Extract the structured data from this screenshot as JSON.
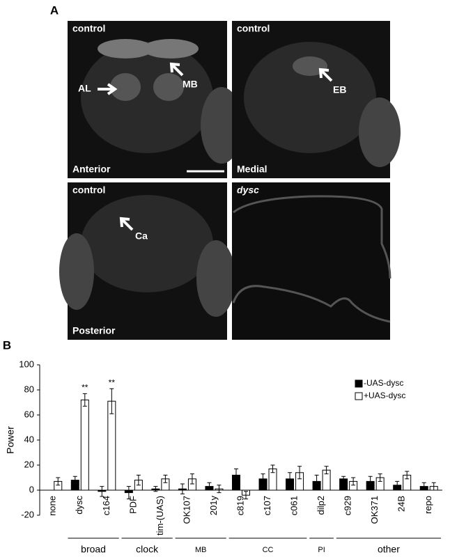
{
  "panel_labels": [
    "A",
    "B"
  ],
  "images": {
    "top_left": {
      "title": "control",
      "region": "Anterior",
      "arrows": [
        "AL",
        "MB"
      ]
    },
    "top_right": {
      "title": "control",
      "region": "Medial",
      "arrows": [
        "EB"
      ]
    },
    "bottom_left": {
      "title": "control",
      "region": "Posterior",
      "arrows": [
        "Ca"
      ]
    },
    "bottom_right": {
      "title": "dysc"
    }
  },
  "chart_data": {
    "type": "bar",
    "y_label": "Power",
    "categories": [
      "none",
      "dysc",
      "c164",
      "PDF",
      "tim-(UAS)",
      "OK107",
      "201y",
      "c819",
      "c107",
      "c061",
      "dilp2",
      "c929",
      "OK371",
      "24B",
      "repo"
    ],
    "series": [
      {
        "name": "-UAS-dysc",
        "color": "#000000",
        "values": [
          null,
          8,
          -1,
          -2,
          1,
          1,
          3,
          12,
          9,
          9,
          7,
          9,
          7,
          4,
          3
        ],
        "errors": [
          null,
          3,
          4,
          5,
          2,
          4,
          3,
          5,
          4,
          5,
          5,
          2,
          4,
          3,
          3
        ]
      },
      {
        "name": "+UAS-dysc",
        "color": "#ffffff",
        "values": [
          7,
          72,
          71,
          8,
          9,
          9,
          1,
          -4,
          17,
          14,
          16,
          7,
          10,
          12,
          3
        ],
        "errors": [
          3,
          5,
          10,
          4,
          3,
          4,
          3,
          3,
          3,
          5,
          3,
          3,
          3,
          3,
          3
        ],
        "markers": [
          null,
          "**",
          "**",
          null,
          null,
          null,
          null,
          null,
          null,
          null,
          null,
          null,
          null,
          null,
          null
        ]
      }
    ],
    "groups": [
      {
        "label": "broad",
        "from": 1,
        "to": 2
      },
      {
        "label": "clock",
        "from": 3,
        "to": 4
      },
      {
        "label": "MB",
        "from": 5,
        "to": 6
      },
      {
        "label": "CC",
        "from": 7,
        "to": 9
      },
      {
        "label": "PI",
        "from": 10,
        "to": 10
      },
      {
        "label": "other",
        "from": 11,
        "to": 14
      }
    ],
    "ylim": [
      -20,
      100
    ],
    "yticks": [
      -20,
      0,
      20,
      40,
      60,
      80,
      100
    ],
    "legend": "upper right"
  }
}
